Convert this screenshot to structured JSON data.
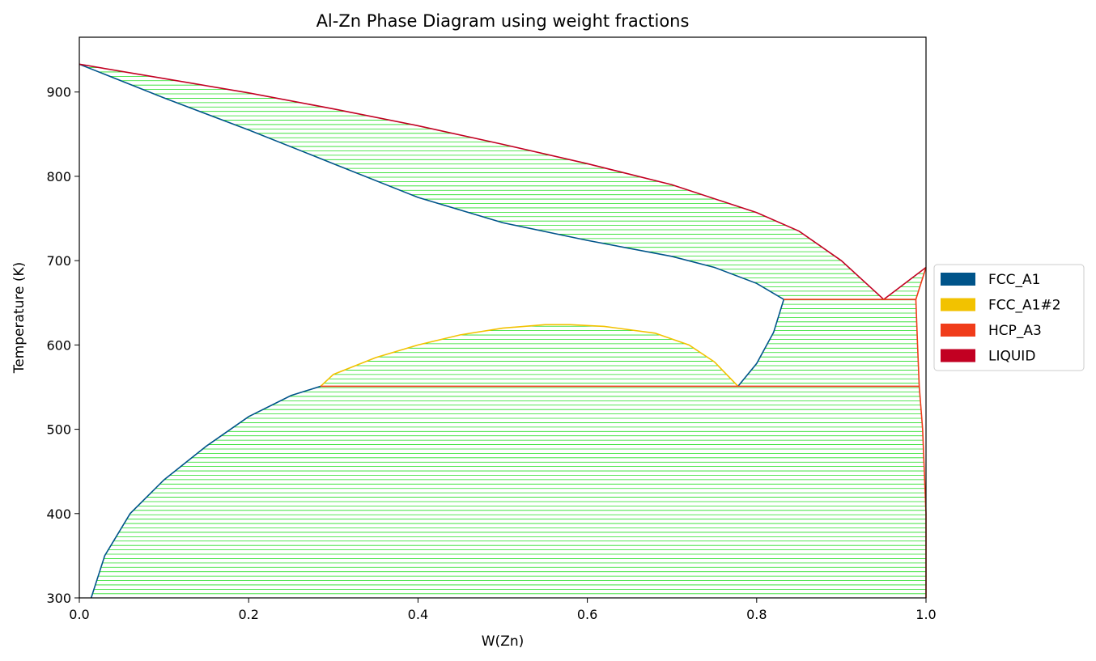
{
  "chart_data": {
    "type": "line",
    "title": "Al-Zn Phase Diagram using weight fractions",
    "xlabel": "W(Zn)",
    "ylabel": "Temperature (K)",
    "xlim": [
      0.0,
      1.0
    ],
    "ylim": [
      300,
      965
    ],
    "xticks": [
      "0.0",
      "0.2",
      "0.4",
      "0.6",
      "0.8",
      "1.0"
    ],
    "yticks": [
      "300",
      "400",
      "500",
      "600",
      "700",
      "800",
      "900"
    ],
    "grid": false,
    "legend_placement": "center-right-outside",
    "legend": [
      {
        "name": "FCC_A1",
        "color": "#00548a"
      },
      {
        "name": "FCC_A1#2",
        "color": "#f2c200"
      },
      {
        "name": "HCP_A3",
        "color": "#f03c1a"
      },
      {
        "name": "LIQUID",
        "color": "#c20022"
      }
    ],
    "tieline_color": "#22dd22",
    "boundaries": [
      {
        "phase": "FCC_A1",
        "color": "#00548a",
        "role": "solidus",
        "points": [
          [
            0.0,
            933
          ],
          [
            0.1,
            893
          ],
          [
            0.2,
            855
          ],
          [
            0.3,
            815
          ],
          [
            0.4,
            775
          ],
          [
            0.5,
            745
          ],
          [
            0.6,
            724
          ],
          [
            0.7,
            705
          ],
          [
            0.75,
            692
          ],
          [
            0.8,
            673
          ],
          [
            0.832,
            654
          ]
        ]
      },
      {
        "phase": "LIQUID",
        "color": "#c20022",
        "role": "liquidus",
        "points": [
          [
            0.0,
            933
          ],
          [
            0.1,
            916
          ],
          [
            0.2,
            899
          ],
          [
            0.3,
            880
          ],
          [
            0.4,
            860
          ],
          [
            0.5,
            838
          ],
          [
            0.6,
            815
          ],
          [
            0.7,
            790
          ],
          [
            0.8,
            757
          ],
          [
            0.85,
            735
          ],
          [
            0.9,
            700
          ],
          [
            0.95,
            654
          ]
        ]
      },
      {
        "phase": "LIQUID",
        "color": "#c20022",
        "role": "liquidus-zn",
        "points": [
          [
            0.95,
            654
          ],
          [
            1.0,
            692
          ]
        ]
      },
      {
        "phase": "HCP_A3",
        "color": "#f03c1a",
        "role": "hcp-liquid",
        "points": [
          [
            0.988,
            654
          ],
          [
            1.0,
            692
          ]
        ]
      },
      {
        "phase": "HCP_A3",
        "color": "#f03c1a",
        "role": "hcp-solvus",
        "points": [
          [
            0.988,
            654
          ],
          [
            0.99,
            600
          ],
          [
            0.992,
            551
          ],
          [
            0.996,
            500
          ],
          [
            0.998,
            450
          ],
          [
            1.0,
            400
          ],
          [
            1.0,
            300
          ]
        ]
      },
      {
        "phase": "FCC_A1",
        "color": "#00548a",
        "role": "fcc-solvus",
        "points": [
          [
            0.014,
            300
          ],
          [
            0.03,
            350
          ],
          [
            0.06,
            400
          ],
          [
            0.1,
            440
          ],
          [
            0.15,
            480
          ],
          [
            0.2,
            515
          ],
          [
            0.25,
            540
          ],
          [
            0.285,
            551
          ]
        ]
      },
      {
        "phase": "FCC_A1",
        "color": "#00548a",
        "role": "fcc-zn-side",
        "points": [
          [
            0.778,
            551
          ],
          [
            0.8,
            578
          ],
          [
            0.82,
            615
          ],
          [
            0.832,
            654
          ]
        ]
      },
      {
        "phase": "FCC_A1#2",
        "color": "#f2c200",
        "role": "miscibility-gap",
        "points": [
          [
            0.285,
            551
          ],
          [
            0.3,
            565
          ],
          [
            0.35,
            585
          ],
          [
            0.4,
            600
          ],
          [
            0.45,
            612
          ],
          [
            0.5,
            620
          ],
          [
            0.55,
            624
          ],
          [
            0.58,
            624
          ],
          [
            0.62,
            622
          ],
          [
            0.68,
            614
          ],
          [
            0.72,
            600
          ],
          [
            0.75,
            580
          ],
          [
            0.778,
            551
          ]
        ]
      },
      {
        "phase": "HCP_A3",
        "color": "#f03c1a",
        "role": "eutectic-654",
        "points": [
          [
            0.832,
            654
          ],
          [
            0.988,
            654
          ]
        ]
      },
      {
        "phase": "HCP_A3",
        "color": "#f03c1a",
        "role": "eutectoid-551",
        "points": [
          [
            0.285,
            551
          ],
          [
            0.992,
            551
          ]
        ]
      }
    ]
  }
}
